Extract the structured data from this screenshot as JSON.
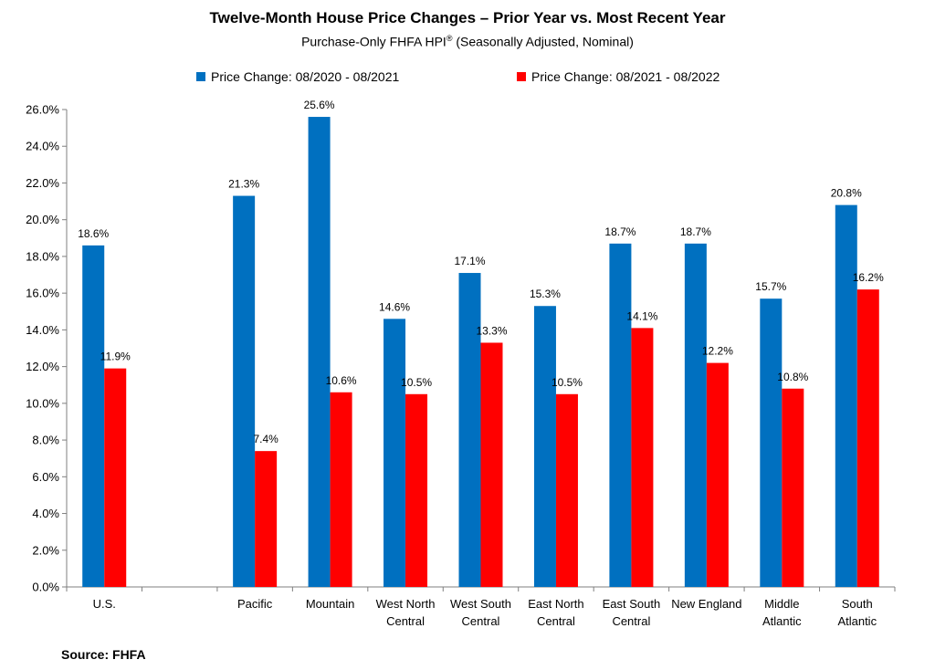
{
  "chart_data": {
    "type": "bar",
    "title": "Twelve-Month House Price Changes – Prior Year vs. Most Recent Year",
    "subtitle": "Purchase-Only FHFA HPI",
    "subtitle_mark": "®",
    "subtitle_suffix": " (Seasonally Adjusted, Nominal)",
    "source": "Source: FHFA",
    "xlabel": "",
    "ylabel": "",
    "ylim": [
      0,
      26
    ],
    "y_ticks": [
      0,
      2,
      4,
      6,
      8,
      10,
      12,
      14,
      16,
      18,
      20,
      22,
      24,
      26
    ],
    "y_tick_format": "percent_1dp",
    "legend_placement": "top",
    "grid": false,
    "categories": [
      [
        "U.S."
      ],
      [
        ""
      ],
      [
        "Pacific"
      ],
      [
        "Mountain"
      ],
      [
        "West North",
        "Central"
      ],
      [
        "West South",
        "Central"
      ],
      [
        "East North",
        "Central"
      ],
      [
        "East South",
        "Central"
      ],
      [
        "New England"
      ],
      [
        "Middle",
        "Atlantic"
      ],
      [
        "South",
        "Atlantic"
      ]
    ],
    "series": [
      {
        "name": "Price Change:  08/2020 - 08/2021",
        "color": "#0070C0",
        "values": [
          18.6,
          null,
          21.3,
          25.6,
          14.6,
          17.1,
          15.3,
          18.7,
          18.7,
          15.7,
          20.8
        ],
        "labels": [
          "18.6%",
          "",
          "21.3%",
          "25.6%",
          "14.6%",
          "17.1%",
          "15.3%",
          "18.7%",
          "18.7%",
          "15.7%",
          "20.8%"
        ]
      },
      {
        "name": "Price Change:  08/2021 - 08/2022",
        "color": "#FF0000",
        "values": [
          11.9,
          null,
          7.4,
          10.6,
          10.5,
          13.3,
          10.5,
          14.1,
          12.2,
          10.8,
          16.2
        ],
        "labels": [
          "11.9%",
          "",
          "7.4%",
          "10.6%",
          "10.5%",
          "13.3%",
          "10.5%",
          "14.1%",
          "12.2%",
          "10.8%",
          "16.2%"
        ]
      }
    ]
  }
}
